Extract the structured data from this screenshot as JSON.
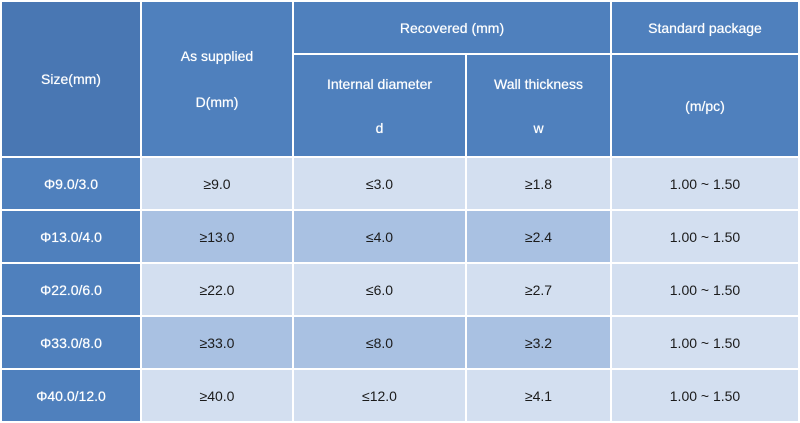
{
  "header": {
    "size": "Size(mm)",
    "as_supplied_line1": "As supplied",
    "as_supplied_line2": "D(mm)",
    "recovered": "Recovered (mm)",
    "internal_diameter": "Internal diameter",
    "internal_diameter_symbol": "d",
    "wall_thickness": "Wall thickness",
    "wall_thickness_symbol": "w",
    "standard_package": "Standard package",
    "standard_package_unit": "(m/pc)"
  },
  "rows": [
    {
      "size": "Φ9.0/3.0",
      "supplied": "≥9.0",
      "internal": "≤3.0",
      "wall": "≥1.8",
      "package": "1.00 ~ 1.50"
    },
    {
      "size": "Φ13.0/4.0",
      "supplied": "≥13.0",
      "internal": "≤4.0",
      "wall": "≥2.4",
      "package": "1.00 ~ 1.50"
    },
    {
      "size": "Φ22.0/6.0",
      "supplied": "≥22.0",
      "internal": "≤6.0",
      "wall": "≥2.7",
      "package": "1.00 ~ 1.50"
    },
    {
      "size": "Φ33.0/8.0",
      "supplied": "≥33.0",
      "internal": "≤8.0",
      "wall": "≥3.2",
      "package": "1.00 ~ 1.50"
    },
    {
      "size": "Φ40.0/12.0",
      "supplied": "≥40.0",
      "internal": "≤12.0",
      "wall": "≥4.1",
      "package": "1.00 ~ 1.50"
    }
  ],
  "colors": {
    "header_blue": "#4f80bd",
    "row_light": "#d3dff0",
    "row_dark": "#a9c1e2"
  }
}
